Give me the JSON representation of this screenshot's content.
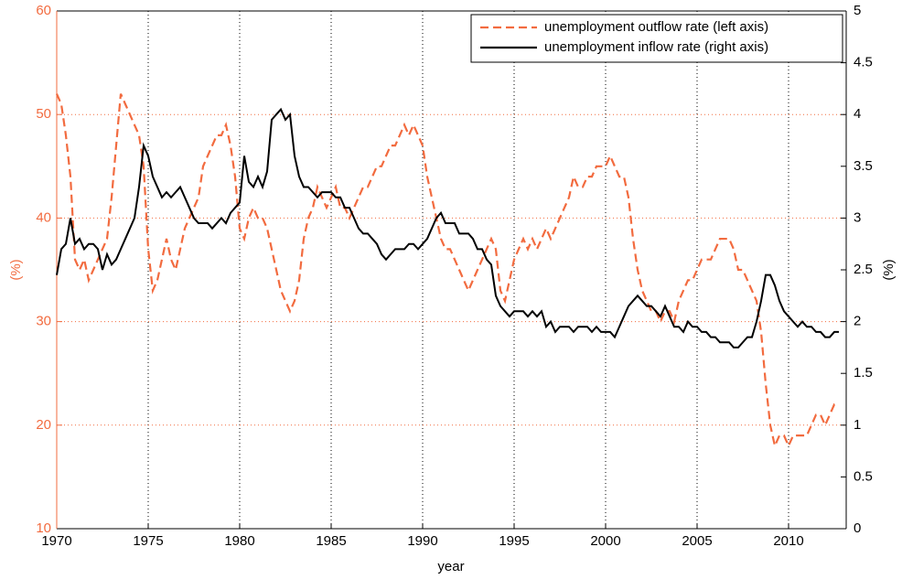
{
  "chart_data": {
    "type": "line",
    "xlabel": "year",
    "ylabel": "(%)",
    "y2label": "(%)",
    "xlim": [
      1970,
      2013.15
    ],
    "xticks": [
      1970,
      1975,
      1980,
      1985,
      1990,
      1995,
      2000,
      2005,
      2010
    ],
    "ylim": [
      10,
      60
    ],
    "yticks": [
      10,
      20,
      30,
      40,
      50,
      60
    ],
    "y2lim": [
      0,
      5
    ],
    "y2ticks": [
      0,
      0.5,
      1,
      1.5,
      2,
      2.5,
      3,
      3.5,
      4,
      4.5,
      5
    ],
    "grid": true,
    "legend": "upper right",
    "x": [
      1970,
      1970.25,
      1970.5,
      1970.75,
      1971,
      1971.25,
      1971.5,
      1971.75,
      1972,
      1972.25,
      1972.5,
      1972.75,
      1973,
      1973.25,
      1973.5,
      1973.75,
      1974,
      1974.25,
      1974.5,
      1974.75,
      1975,
      1975.25,
      1975.5,
      1975.75,
      1976,
      1976.25,
      1976.5,
      1976.75,
      1977,
      1977.25,
      1977.5,
      1977.75,
      1978,
      1978.25,
      1978.5,
      1978.75,
      1979,
      1979.25,
      1979.5,
      1979.75,
      1980,
      1980.25,
      1980.5,
      1980.75,
      1981,
      1981.25,
      1981.5,
      1981.75,
      1982,
      1982.25,
      1982.5,
      1982.75,
      1983,
      1983.25,
      1983.5,
      1983.75,
      1984,
      1984.25,
      1984.5,
      1984.75,
      1985,
      1985.25,
      1985.5,
      1985.75,
      1986,
      1986.25,
      1986.5,
      1986.75,
      1987,
      1987.25,
      1987.5,
      1987.75,
      1988,
      1988.25,
      1988.5,
      1988.75,
      1989,
      1989.25,
      1989.5,
      1989.75,
      1990,
      1990.25,
      1990.5,
      1990.75,
      1991,
      1991.25,
      1991.5,
      1991.75,
      1992,
      1992.25,
      1992.5,
      1992.75,
      1993,
      1993.25,
      1993.5,
      1993.75,
      1994,
      1994.25,
      1994.5,
      1994.75,
      1995,
      1995.25,
      1995.5,
      1995.75,
      1996,
      1996.25,
      1996.5,
      1996.75,
      1997,
      1997.25,
      1997.5,
      1997.75,
      1998,
      1998.25,
      1998.5,
      1998.75,
      1999,
      1999.25,
      1999.5,
      1999.75,
      2000,
      2000.25,
      2000.5,
      2000.75,
      2001,
      2001.25,
      2001.5,
      2001.75,
      2002,
      2002.25,
      2002.5,
      2002.75,
      2003,
      2003.25,
      2003.5,
      2003.75,
      2004,
      2004.25,
      2004.5,
      2004.75,
      2005,
      2005.25,
      2005.5,
      2005.75,
      2006,
      2006.25,
      2006.5,
      2006.75,
      2007,
      2007.25,
      2007.5,
      2007.75,
      2008,
      2008.25,
      2008.5,
      2008.75,
      2009,
      2009.25,
      2009.5,
      2009.75,
      2010,
      2010.25,
      2010.5,
      2010.75,
      2011,
      2011.25,
      2011.5,
      2011.75,
      2012,
      2012.25,
      2012.5,
      2012.75
    ],
    "series": [
      {
        "name": "unemployment outflow rate (left axis)",
        "color": "#f26b3f",
        "dash": true,
        "values": [
          52,
          51,
          48,
          44,
          36,
          35,
          36,
          34,
          35,
          36,
          37,
          38,
          42,
          47,
          52,
          51,
          50,
          49,
          48,
          45,
          37,
          33,
          34,
          36,
          38,
          36,
          35,
          37,
          39,
          40,
          41,
          42,
          45,
          46,
          47,
          48,
          48,
          49,
          47,
          44,
          39,
          38,
          40,
          41,
          40,
          40,
          39,
          37,
          35,
          33,
          32,
          31,
          32,
          34,
          38,
          40,
          41,
          43,
          42,
          41,
          42,
          43,
          41,
          41,
          40,
          41,
          42,
          43,
          43,
          44,
          45,
          45,
          46,
          47,
          47,
          48,
          49,
          48,
          49,
          48,
          47,
          44,
          42,
          40,
          38,
          37,
          37,
          36,
          35,
          34,
          33,
          34,
          35,
          36,
          37,
          38,
          37,
          33,
          32,
          34,
          36,
          37,
          38,
          37,
          38,
          37,
          38,
          39,
          38,
          39,
          40,
          41,
          42,
          44,
          43,
          43,
          44,
          44,
          45,
          45,
          45,
          46,
          45,
          44,
          44,
          42,
          38,
          35,
          33,
          32,
          31,
          31,
          30,
          31,
          31,
          30,
          32,
          33,
          34,
          34,
          35,
          36,
          36,
          36,
          37,
          38,
          38,
          38,
          37,
          35,
          35,
          34,
          33,
          32,
          29,
          24,
          20,
          18,
          19,
          19,
          18,
          19,
          19,
          19,
          19,
          20,
          21,
          21,
          20,
          21,
          22,
          22
        ]
      },
      {
        "name": "unemployment inflow rate (right axis)",
        "color": "#000000",
        "axis": "y2",
        "values": [
          2.45,
          2.7,
          2.75,
          3.0,
          2.75,
          2.8,
          2.7,
          2.75,
          2.75,
          2.7,
          2.5,
          2.65,
          2.55,
          2.6,
          2.7,
          2.8,
          2.9,
          3.0,
          3.3,
          3.7,
          3.6,
          3.4,
          3.3,
          3.2,
          3.25,
          3.2,
          3.25,
          3.3,
          3.2,
          3.1,
          3.0,
          2.95,
          2.95,
          2.95,
          2.9,
          2.95,
          3.0,
          2.95,
          3.05,
          3.1,
          3.15,
          3.6,
          3.35,
          3.3,
          3.4,
          3.3,
          3.45,
          3.95,
          4.0,
          4.05,
          3.95,
          4.0,
          3.6,
          3.4,
          3.3,
          3.3,
          3.25,
          3.2,
          3.25,
          3.25,
          3.25,
          3.2,
          3.2,
          3.1,
          3.1,
          3.0,
          2.9,
          2.85,
          2.85,
          2.8,
          2.75,
          2.65,
          2.6,
          2.65,
          2.7,
          2.7,
          2.7,
          2.75,
          2.75,
          2.7,
          2.75,
          2.8,
          2.9,
          3.0,
          3.05,
          2.95,
          2.95,
          2.95,
          2.85,
          2.85,
          2.85,
          2.8,
          2.7,
          2.7,
          2.6,
          2.55,
          2.25,
          2.15,
          2.1,
          2.05,
          2.1,
          2.1,
          2.1,
          2.05,
          2.1,
          2.05,
          2.1,
          1.95,
          2.0,
          1.9,
          1.95,
          1.95,
          1.95,
          1.9,
          1.95,
          1.95,
          1.95,
          1.9,
          1.95,
          1.9,
          1.9,
          1.9,
          1.85,
          1.95,
          2.05,
          2.15,
          2.2,
          2.25,
          2.2,
          2.15,
          2.15,
          2.1,
          2.05,
          2.15,
          2.05,
          1.95,
          1.95,
          1.9,
          2.0,
          1.95,
          1.95,
          1.9,
          1.9,
          1.85,
          1.85,
          1.8,
          1.8,
          1.8,
          1.75,
          1.75,
          1.8,
          1.85,
          1.85,
          2.0,
          2.2,
          2.45,
          2.45,
          2.35,
          2.2,
          2.1,
          2.05,
          2.0,
          1.95,
          2.0,
          1.95,
          1.95,
          1.9,
          1.9,
          1.85,
          1.85,
          1.9,
          1.9
        ]
      }
    ]
  }
}
